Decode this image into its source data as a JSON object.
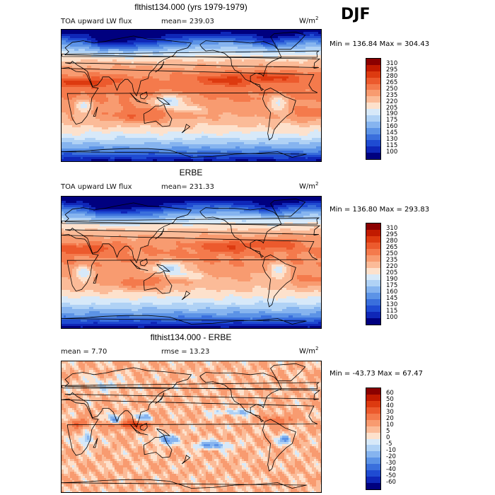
{
  "season": "DJF",
  "panels": [
    {
      "title": "flthist134.000 (yrs 1979-1979)",
      "left_label": "TOA upward LW flux",
      "stat_label": "mean= 239.03",
      "units_base": "W/m",
      "units_exp": "2",
      "minmax": "Min = 136.84 Max = 304.43",
      "colorbar": {
        "levels": [
          "310",
          "295",
          "280",
          "265",
          "250",
          "235",
          "220",
          "205",
          "190",
          "175",
          "160",
          "145",
          "130",
          "115",
          "100"
        ],
        "colors": [
          "#8b0000",
          "#c11a00",
          "#dd3a10",
          "#ec5a2d",
          "#f47a4c",
          "#f89b70",
          "#fbbb98",
          "#fde1cc",
          "#d7e9f9",
          "#b0d2f5",
          "#86b4ef",
          "#5c93e6",
          "#3a6fdc",
          "#1f4bd2",
          "#0f27b8",
          "#00007f"
        ]
      },
      "field": "olr_model"
    },
    {
      "title": "ERBE",
      "left_label": "TOA upward LW flux",
      "stat_label": "mean= 231.33",
      "units_base": "W/m",
      "units_exp": "2",
      "minmax": "Min = 136.80 Max = 293.83",
      "colorbar": {
        "levels": [
          "310",
          "295",
          "280",
          "265",
          "250",
          "235",
          "220",
          "205",
          "190",
          "175",
          "160",
          "145",
          "130",
          "115",
          "100"
        ],
        "colors": [
          "#8b0000",
          "#c11a00",
          "#dd3a10",
          "#ec5a2d",
          "#f47a4c",
          "#f89b70",
          "#fbbb98",
          "#fde1cc",
          "#d7e9f9",
          "#b0d2f5",
          "#86b4ef",
          "#5c93e6",
          "#3a6fdc",
          "#1f4bd2",
          "#0f27b8",
          "#00007f"
        ]
      },
      "field": "olr_obs"
    },
    {
      "title": "flthist134.000 - ERBE",
      "left_label": "mean =   7.70",
      "stat_label": "rmse =  13.23",
      "units_base": "W/m",
      "units_exp": "2",
      "minmax": "Min = -43.73 Max =  67.47",
      "colorbar": {
        "levels": [
          "60",
          "50",
          "40",
          "30",
          "20",
          "10",
          "5",
          "0",
          "-5",
          "-10",
          "-20",
          "-30",
          "-40",
          "-50",
          "-60"
        ],
        "colors": [
          "#8b0000",
          "#c11a00",
          "#dd3a10",
          "#ec5a2d",
          "#f47a4c",
          "#f89b70",
          "#fbbb98",
          "#fde1cc",
          "#d7e9f9",
          "#b0d2f5",
          "#86b4ef",
          "#5c93e6",
          "#3a6fdc",
          "#1f4bd2",
          "#0f27b8",
          "#00007f"
        ]
      },
      "field": "diff"
    }
  ]
}
